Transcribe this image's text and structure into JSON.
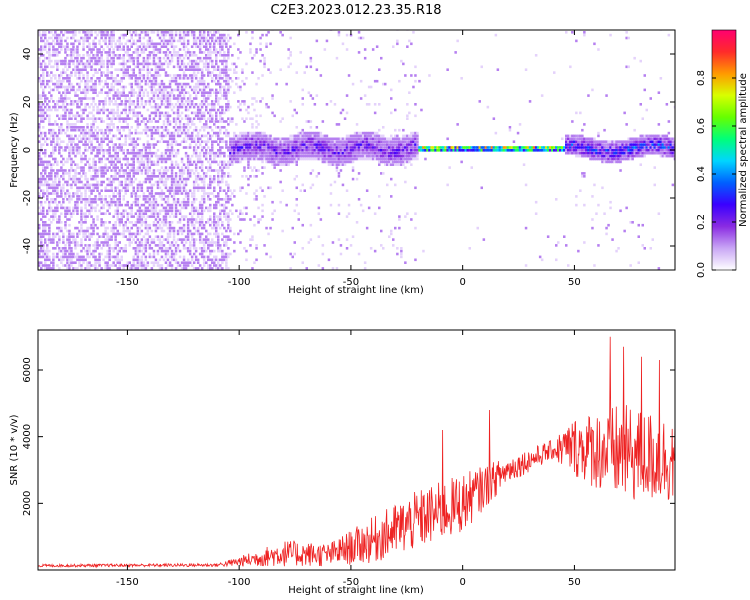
{
  "title": "C2E3.2023.012.23.35.R18",
  "chart_data": [
    {
      "type": "heatmap",
      "xlabel": "Height of straight line (km)",
      "ylabel": "Frequency (Hz)",
      "xlim": [
        -190,
        95
      ],
      "ylim": [
        -50,
        50
      ],
      "xticks": [
        -150,
        -100,
        -50,
        0,
        50
      ],
      "yticks": [
        -40,
        -20,
        0,
        20,
        40
      ],
      "colorbar": {
        "label": "Normalized spectral amplitude",
        "range": [
          0,
          1
        ],
        "ticks": [
          0.0,
          0.2,
          0.4,
          0.6,
          0.8
        ],
        "colors": [
          "#ffffff",
          "#c9a6f5",
          "#8a2be2",
          "#3a00ff",
          "#0060ff",
          "#00d5ff",
          "#00ff7a",
          "#66ff00",
          "#d8ff00",
          "#ff9a00",
          "#ff2a2a",
          "#ff0070"
        ]
      },
      "features": [
        {
          "region": [
            -190,
            -105
          ],
          "description_level": "broadband noise",
          "amplitude": 0.05
        },
        {
          "region": [
            -105,
            -20
          ],
          "center_hz": 0,
          "halfwidth_hz": 6,
          "amplitude": 0.25
        },
        {
          "region": [
            -20,
            45
          ],
          "center_hz": 0,
          "halfwidth_hz": 2,
          "amplitude": 0.9
        },
        {
          "region": [
            45,
            95
          ],
          "center_hz": 0,
          "halfwidth_hz": 5,
          "amplitude": 0.35
        }
      ]
    },
    {
      "type": "line",
      "xlabel": "Height of straight line (km)",
      "ylabel": "SNR (10 * v/v)",
      "xlim": [
        -190,
        95
      ],
      "ylim": [
        0,
        7200
      ],
      "xticks": [
        -150,
        -100,
        -50,
        0,
        50
      ],
      "yticks": [
        2000,
        4000,
        6000
      ],
      "series_color": "#ee2222",
      "trend": [
        {
          "x": -190,
          "mean": 130,
          "spread": 40
        },
        {
          "x": -110,
          "mean": 150,
          "spread": 50
        },
        {
          "x": -100,
          "mean": 250,
          "spread": 150
        },
        {
          "x": -80,
          "mean": 500,
          "spread": 400
        },
        {
          "x": -60,
          "mean": 450,
          "spread": 350
        },
        {
          "x": -40,
          "mean": 900,
          "spread": 700
        },
        {
          "x": -20,
          "mean": 1500,
          "spread": 900
        },
        {
          "x": 0,
          "mean": 2000,
          "spread": 900
        },
        {
          "x": 20,
          "mean": 3000,
          "spread": 400
        },
        {
          "x": 40,
          "mean": 3600,
          "spread": 300
        },
        {
          "x": 50,
          "mean": 3700,
          "spread": 900
        },
        {
          "x": 70,
          "mean": 3500,
          "spread": 1500
        },
        {
          "x": 95,
          "mean": 3300,
          "spread": 1300
        }
      ],
      "spikes": [
        {
          "x": -9,
          "y": 4200
        },
        {
          "x": 12,
          "y": 4800
        },
        {
          "x": 66,
          "y": 7000
        },
        {
          "x": 72,
          "y": 6700
        },
        {
          "x": 80,
          "y": 6400
        },
        {
          "x": 88,
          "y": 6300
        }
      ]
    }
  ]
}
